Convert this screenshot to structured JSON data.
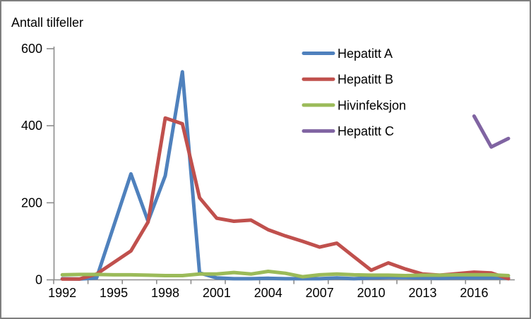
{
  "window": {
    "background": "#FFFFFF",
    "border_color": "#7E7E7E"
  },
  "chart_data": {
    "type": "line",
    "title": "Antall tilfeller",
    "xlabel": "",
    "ylabel": "Antall tilfeller",
    "ylim": [
      0,
      600
    ],
    "y_ticks": [
      0,
      200,
      400,
      600
    ],
    "grid": false,
    "legend_position": "top-right-inside",
    "axis_color": "#8C8C8C",
    "text_color": "#000000",
    "x_years": [
      1992,
      1993,
      1994,
      1995,
      1996,
      1997,
      1998,
      1999,
      2000,
      2001,
      2002,
      2003,
      2004,
      2005,
      2006,
      2007,
      2008,
      2009,
      2010,
      2011,
      2012,
      2013,
      2014,
      2015,
      2016,
      2017,
      2018
    ],
    "x_label_years": [
      1992,
      1995,
      1998,
      2001,
      2004,
      2007,
      2010,
      2013,
      2016
    ],
    "series": [
      {
        "name": "Hepatitt A",
        "color": "#4F81BD",
        "values": [
          3,
          2,
          5,
          140,
          275,
          152,
          270,
          540,
          18,
          5,
          3,
          3,
          4,
          3,
          3,
          3,
          5,
          3,
          5,
          6,
          6,
          5,
          4,
          5,
          5,
          5,
          5
        ]
      },
      {
        "name": "Hepatitt B",
        "color": "#C0504D",
        "values": [
          2,
          2,
          15,
          45,
          75,
          150,
          420,
          405,
          213,
          160,
          152,
          155,
          130,
          114,
          100,
          85,
          95,
          60,
          25,
          44,
          28,
          15,
          12,
          16,
          20,
          18,
          3
        ]
      },
      {
        "name": "Hivinfeksjon",
        "color": "#9BBB59",
        "values": [
          13,
          14,
          14,
          13,
          13,
          12,
          11,
          11,
          15,
          15,
          19,
          15,
          22,
          17,
          8,
          13,
          15,
          13,
          12,
          12,
          11,
          12,
          12,
          13,
          13,
          13,
          11
        ]
      },
      {
        "name": "Hepatitt C",
        "color": "#8064A2",
        "values": [
          null,
          null,
          null,
          null,
          null,
          null,
          null,
          null,
          null,
          null,
          null,
          null,
          null,
          null,
          null,
          null,
          null,
          null,
          null,
          null,
          null,
          null,
          null,
          null,
          425,
          345,
          367
        ]
      }
    ]
  }
}
